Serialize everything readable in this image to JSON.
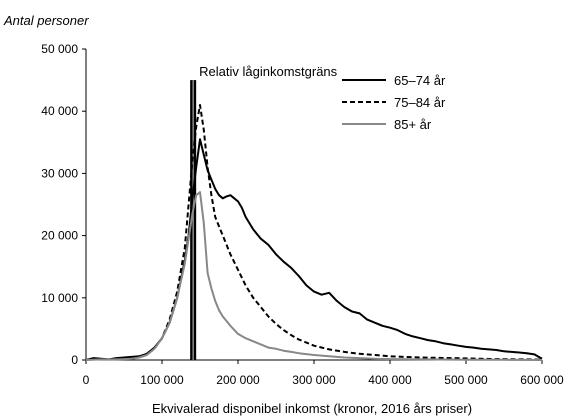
{
  "chart_data": {
    "type": "line",
    "ylabel": "Antal personer",
    "xlabel": "Ekvivalerad disponibel inkomst (kronor, 2016 års priser)",
    "xlim": [
      0,
      600000
    ],
    "ylim": [
      0,
      50000
    ],
    "x_ticks": [
      0,
      100000,
      200000,
      300000,
      400000,
      500000,
      600000
    ],
    "x_tick_labels": [
      "0",
      "100 000",
      "200 000",
      "300 000",
      "400 000",
      "500 000",
      "600 000"
    ],
    "y_ticks": [
      0,
      10000,
      20000,
      30000,
      40000,
      50000
    ],
    "y_tick_labels": [
      "0",
      "10 000",
      "20 000",
      "30 000",
      "40 000",
      "50 000"
    ],
    "grid": false,
    "legend_position": "top-right",
    "annotation": {
      "text": "Relativ låginkomstgräns",
      "x": 141000,
      "y_top": 45000
    },
    "series": [
      {
        "name": "65–74 år",
        "style": "solid",
        "color": "#000000",
        "x": [
          0,
          10000,
          20000,
          30000,
          40000,
          50000,
          60000,
          70000,
          80000,
          90000,
          100000,
          110000,
          120000,
          130000,
          135000,
          140000,
          145000,
          150000,
          155000,
          160000,
          165000,
          170000,
          175000,
          180000,
          185000,
          190000,
          195000,
          200000,
          205000,
          210000,
          220000,
          230000,
          240000,
          250000,
          260000,
          270000,
          280000,
          290000,
          300000,
          310000,
          320000,
          330000,
          340000,
          350000,
          360000,
          370000,
          380000,
          390000,
          400000,
          410000,
          420000,
          430000,
          440000,
          450000,
          460000,
          470000,
          480000,
          490000,
          500000,
          510000,
          520000,
          530000,
          540000,
          550000,
          560000,
          570000,
          580000,
          590000,
          600000
        ],
        "y": [
          0,
          300,
          200,
          100,
          300,
          400,
          500,
          600,
          1000,
          2000,
          3500,
          6000,
          10000,
          16000,
          20000,
          26000,
          31000,
          35500,
          33000,
          30500,
          29000,
          27500,
          26500,
          26000,
          26300,
          26500,
          26000,
          25500,
          24500,
          23000,
          21000,
          19500,
          18500,
          17000,
          15800,
          14800,
          13500,
          12000,
          11000,
          10500,
          10800,
          9500,
          8500,
          7800,
          7500,
          6500,
          6000,
          5500,
          5200,
          4800,
          4200,
          3800,
          3500,
          3200,
          3000,
          2700,
          2500,
          2300,
          2100,
          2000,
          1800,
          1700,
          1600,
          1400,
          1300,
          1200,
          1100,
          900,
          200
        ]
      },
      {
        "name": "75–84 år",
        "style": "dashed",
        "color": "#000000",
        "x": [
          0,
          10000,
          20000,
          30000,
          40000,
          50000,
          60000,
          70000,
          80000,
          90000,
          100000,
          110000,
          120000,
          130000,
          135000,
          140000,
          145000,
          150000,
          155000,
          160000,
          165000,
          170000,
          175000,
          180000,
          190000,
          200000,
          210000,
          220000,
          230000,
          240000,
          250000,
          260000,
          270000,
          280000,
          290000,
          300000,
          320000,
          340000,
          360000,
          380000,
          400000,
          420000,
          440000,
          460000,
          480000,
          500000,
          520000,
          540000,
          560000,
          580000,
          600000
        ],
        "y": [
          0,
          200,
          150,
          100,
          150,
          200,
          300,
          500,
          900,
          1800,
          3500,
          6500,
          11000,
          18000,
          25000,
          32000,
          37500,
          41000,
          37000,
          31000,
          26500,
          23000,
          21500,
          20000,
          17000,
          14500,
          12000,
          10000,
          8500,
          7000,
          5800,
          4800,
          4000,
          3300,
          2800,
          2300,
          1700,
          1300,
          1000,
          800,
          600,
          500,
          400,
          350,
          300,
          250,
          200,
          150,
          120,
          100,
          50
        ]
      },
      {
        "name": "85+ år",
        "style": "solid",
        "color": "#888888",
        "x": [
          0,
          20000,
          40000,
          60000,
          70000,
          80000,
          90000,
          100000,
          110000,
          120000,
          130000,
          135000,
          140000,
          145000,
          150000,
          155000,
          160000,
          165000,
          170000,
          175000,
          180000,
          190000,
          200000,
          210000,
          220000,
          230000,
          240000,
          250000,
          260000,
          270000,
          280000,
          300000,
          320000,
          340000,
          360000,
          380000,
          400000,
          450000,
          500000,
          550000,
          600000
        ],
        "y": [
          0,
          100,
          100,
          200,
          400,
          800,
          1800,
          3500,
          6000,
          10000,
          15500,
          19500,
          23500,
          26500,
          27000,
          22000,
          14000,
          11500,
          9500,
          8000,
          7000,
          5500,
          4200,
          3500,
          3000,
          2500,
          2000,
          1800,
          1500,
          1300,
          1100,
          800,
          600,
          400,
          300,
          200,
          150,
          100,
          50,
          30,
          0
        ]
      }
    ]
  }
}
